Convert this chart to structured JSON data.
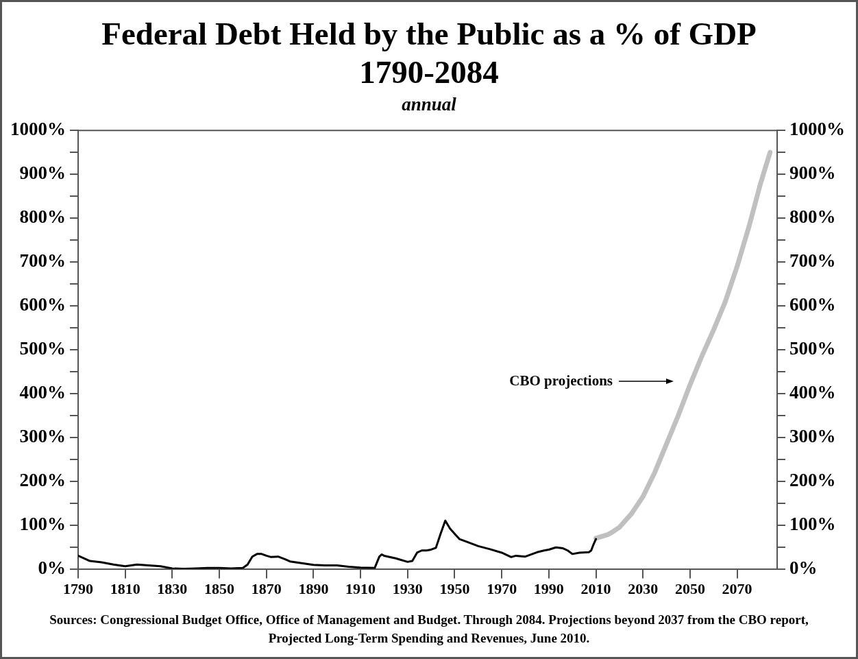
{
  "chart_data": {
    "type": "line",
    "title": "Federal Debt Held by the Public as a % of GDP 1790-2084",
    "subtitle": "annual",
    "xlim": [
      1790,
      2087
    ],
    "xticks": [
      1790,
      1810,
      1830,
      1850,
      1870,
      1890,
      1910,
      1930,
      1950,
      1970,
      1990,
      2010,
      2030,
      2050,
      2070
    ],
    "ylim": [
      0,
      1000
    ],
    "yticks": [
      {
        "value": 0,
        "label": "0%"
      },
      {
        "value": 50,
        "label": null
      },
      {
        "value": 100,
        "label": "100%"
      },
      {
        "value": 150,
        "label": null
      },
      {
        "value": 200,
        "label": "200%"
      },
      {
        "value": 250,
        "label": null
      },
      {
        "value": 300,
        "label": "300%"
      },
      {
        "value": 350,
        "label": null
      },
      {
        "value": 400,
        "label": "400%"
      },
      {
        "value": 450,
        "label": null
      },
      {
        "value": 500,
        "label": "500%"
      },
      {
        "value": 550,
        "label": null
      },
      {
        "value": 600,
        "label": "600%"
      },
      {
        "value": 650,
        "label": null
      },
      {
        "value": 700,
        "label": "700%"
      },
      {
        "value": 750,
        "label": null
      },
      {
        "value": 800,
        "label": "800%"
      },
      {
        "value": 850,
        "label": null
      },
      {
        "value": 900,
        "label": "900%"
      },
      {
        "value": 950,
        "label": null
      },
      {
        "value": 1000,
        "label": "1000%"
      }
    ],
    "y2lim": [
      0,
      1000
    ],
    "y2ticks": [
      {
        "value": 0,
        "label": "0%"
      },
      {
        "value": 50,
        "label": null
      },
      {
        "value": 100,
        "label": "100%"
      },
      {
        "value": 150,
        "label": null
      },
      {
        "value": 200,
        "label": "200%"
      },
      {
        "value": 250,
        "label": null
      },
      {
        "value": 300,
        "label": "300%"
      },
      {
        "value": 350,
        "label": null
      },
      {
        "value": 400,
        "label": "400%"
      },
      {
        "value": 450,
        "label": null
      },
      {
        "value": 500,
        "label": "500%"
      },
      {
        "value": 550,
        "label": null
      },
      {
        "value": 600,
        "label": "600%"
      },
      {
        "value": 650,
        "label": null
      },
      {
        "value": 700,
        "label": "700%"
      },
      {
        "value": 750,
        "label": null
      },
      {
        "value": 800,
        "label": "800%"
      },
      {
        "value": 850,
        "label": null
      },
      {
        "value": 900,
        "label": "900%"
      },
      {
        "value": 950,
        "label": null
      },
      {
        "value": 1000,
        "label": "1000%"
      }
    ],
    "grid": false,
    "legend": false,
    "marker": "none",
    "line_style": "solid",
    "series": [
      {
        "color": "#000000",
        "x": [
          1790,
          1795,
          1800,
          1805,
          1810,
          1815,
          1820,
          1825,
          1830,
          1835,
          1840,
          1845,
          1850,
          1855,
          1860,
          1862,
          1864,
          1866,
          1868,
          1870,
          1872,
          1875,
          1878,
          1880,
          1885,
          1890,
          1895,
          1900,
          1905,
          1910,
          1916,
          1918,
          1919,
          1920,
          1925,
          1930,
          1932,
          1934,
          1936,
          1938,
          1940,
          1942,
          1944,
          1946,
          1948,
          1950,
          1952,
          1955,
          1960,
          1965,
          1970,
          1974,
          1976,
          1980,
          1985,
          1988,
          1990,
          1993,
          1996,
          1998,
          2000,
          2003,
          2007,
          2008,
          2009,
          2010
        ],
        "values": [
          30,
          18,
          15,
          10,
          6,
          10,
          8,
          6,
          1,
          0,
          1,
          2,
          2,
          1,
          2,
          10,
          28,
          34,
          34,
          30,
          27,
          28,
          22,
          17,
          13,
          9,
          8,
          8,
          5,
          3,
          2,
          28,
          33,
          30,
          24,
          16,
          18,
          37,
          42,
          42,
          44,
          48,
          80,
          110,
          92,
          80,
          68,
          62,
          52,
          45,
          37,
          27,
          30,
          28,
          38,
          42,
          44,
          49,
          47,
          42,
          34,
          37,
          38,
          42,
          56,
          68
        ]
      },
      {
        "color": "#c0c0c0",
        "x": [
          2010,
          2015,
          2017,
          2020,
          2025,
          2030,
          2035,
          2040,
          2045,
          2050,
          2055,
          2060,
          2065,
          2070,
          2075,
          2080,
          2084
        ],
        "values": [
          70,
          78,
          84,
          95,
          125,
          165,
          220,
          285,
          350,
          420,
          485,
          545,
          610,
          690,
          780,
          880,
          950
        ]
      }
    ],
    "annotations": [
      "CBO projections",
      "Sources: Congressional Budget Office, Office of Management and Budget. Through 2084. Projections beyond 2037 from the CBO report, Projected Long-Term Spending and Revenues, June 2010."
    ]
  }
}
